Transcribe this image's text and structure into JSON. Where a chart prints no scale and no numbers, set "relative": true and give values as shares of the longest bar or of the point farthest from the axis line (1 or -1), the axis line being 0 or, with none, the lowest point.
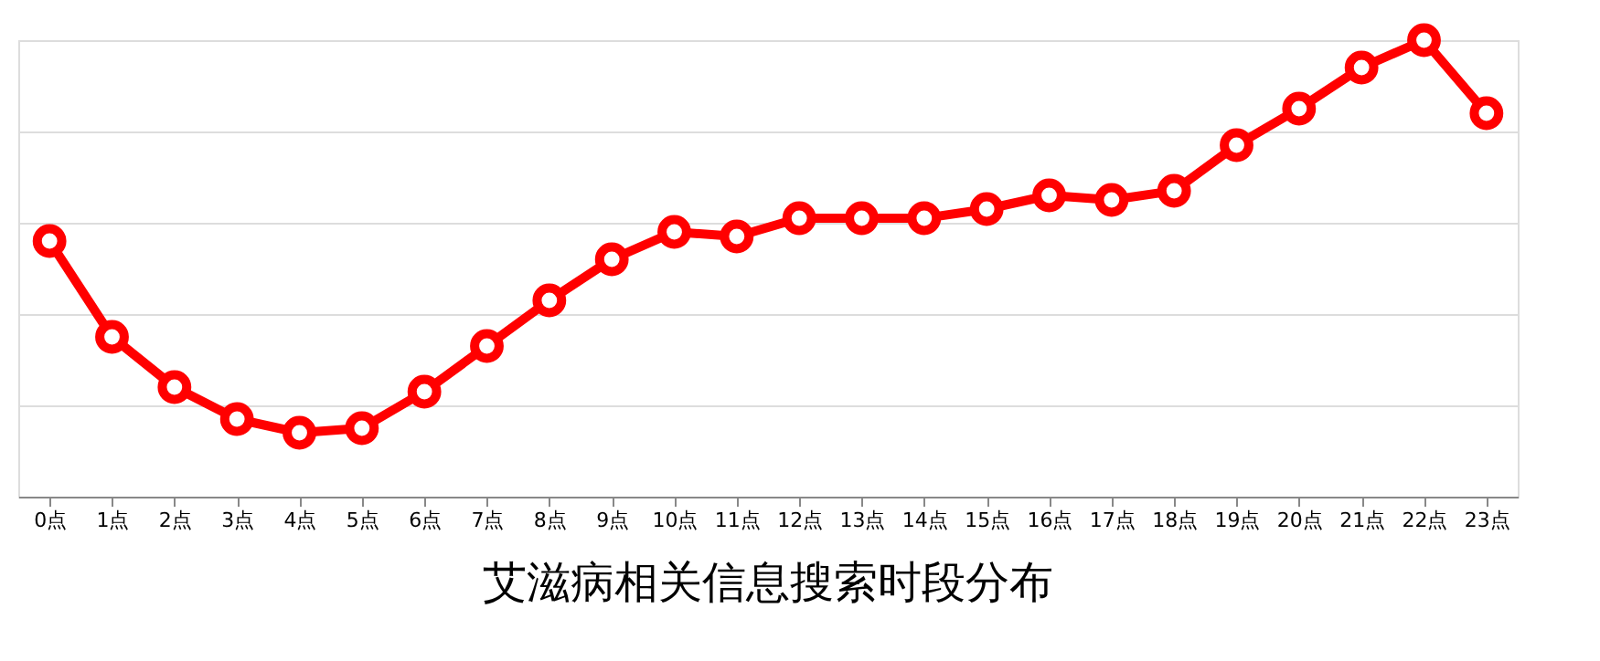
{
  "chart_data": {
    "type": "line",
    "title": "艾滋病相关信息搜索时段分布",
    "relative": true,
    "grid": "y",
    "marker": "circle",
    "line_style": "solid",
    "categories": [
      "0点",
      "1点",
      "2点",
      "3点",
      "4点",
      "5点",
      "6点",
      "7点",
      "8点",
      "9点",
      "10点",
      "11点",
      "12点",
      "13点",
      "14点",
      "15点",
      "16点",
      "17点",
      "18点",
      "19点",
      "20点",
      "21点",
      "22点",
      "23点"
    ],
    "series": [
      {
        "color": "#ff0000",
        "values": [
          0.56,
          0.35,
          0.24,
          0.17,
          0.14,
          0.15,
          0.23,
          0.33,
          0.43,
          0.52,
          0.58,
          0.57,
          0.61,
          0.61,
          0.61,
          0.63,
          0.66,
          0.65,
          0.67,
          0.77,
          0.85,
          0.94,
          1,
          0.84
        ]
      }
    ]
  }
}
